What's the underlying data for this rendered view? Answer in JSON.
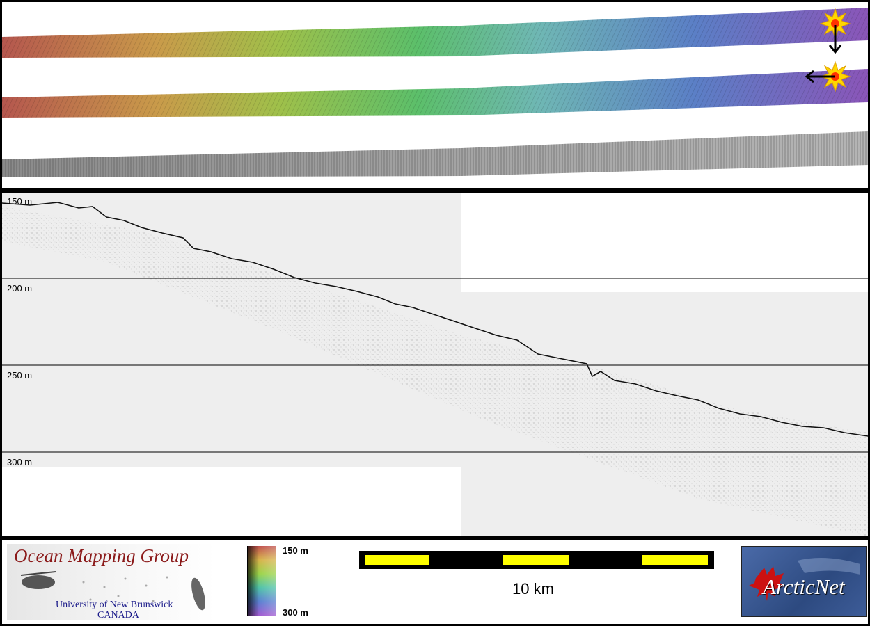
{
  "profile": {
    "depth_labels": [
      "150 m",
      "200 m",
      "250 m",
      "300 m"
    ]
  },
  "legend": {
    "omg_logo": {
      "title": "Ocean Mapping Group",
      "line1": "University of New Brunswick",
      "line2": "CANADA"
    },
    "colorbar": {
      "top_label": "150 m",
      "bottom_label": "300 m",
      "colors": [
        "#c0504d",
        "#d6b34a",
        "#9bd34a",
        "#4fc2a8",
        "#5b7fd1",
        "#a05bd1"
      ]
    },
    "scale_bar": {
      "label": "10 km",
      "colors": [
        "#ffff00",
        "#000000"
      ]
    },
    "arcticnet_logo": {
      "text": "ArcticNet",
      "colors": [
        "#34508a",
        "#cc1111"
      ]
    }
  },
  "colors": {
    "frame": "#000000",
    "marker": "#ffd700",
    "marker_center": "#ff3300",
    "arrow": "#000000"
  }
}
